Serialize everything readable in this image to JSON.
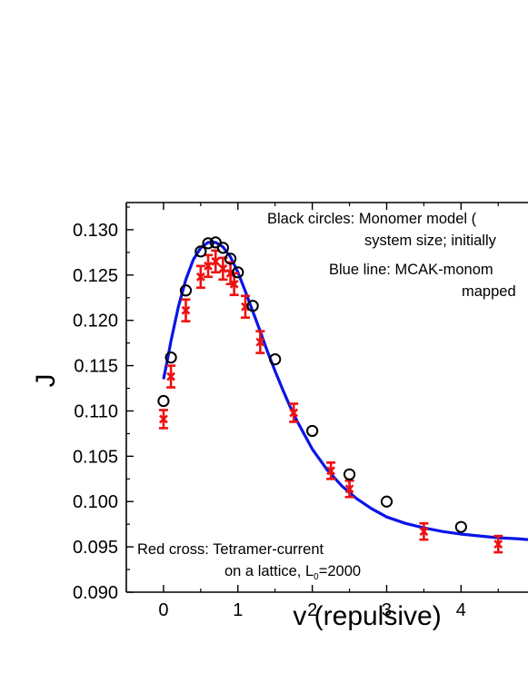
{
  "chart_data": {
    "type": "scatter",
    "xlabel": "v (repulsive)",
    "ylabel": "J",
    "xlim": [
      -0.5,
      4.9
    ],
    "ylim": [
      0.09,
      0.133
    ],
    "x_ticks": [
      "0",
      "1",
      "2",
      "3",
      "4"
    ],
    "y_ticks": [
      "0.090",
      "0.095",
      "0.100",
      "0.105",
      "0.110",
      "0.115",
      "0.120",
      "0.125",
      "0.130"
    ],
    "grid": false,
    "colors": {
      "circles": "#000000",
      "line": "#0a14e6",
      "crosses": "#ee1111"
    },
    "annotations": {
      "black_line1": "Black circles: Monomer model (",
      "black_line2": "system size; initially",
      "blue_line1": "Blue line: MCAK-monom",
      "blue_line2": "mapped",
      "red_line1": "Red cross: Tetramer-current",
      "red_line2_pre": "on a lattice, L",
      "red_line2_sub": "0",
      "red_line2_post": "=2000"
    },
    "series": [
      {
        "marker": "open-circle",
        "x": [
          0,
          0.1,
          0.3,
          0.5,
          0.6,
          0.7,
          0.8,
          0.9,
          1.0,
          1.2,
          1.5,
          2.0,
          2.5,
          3.0,
          4.0
        ],
        "y": [
          0.1111,
          0.1159,
          0.1233,
          0.1276,
          0.1285,
          0.1286,
          0.128,
          0.1268,
          0.1253,
          0.1216,
          0.1157,
          0.1078,
          0.103,
          0.1,
          0.0972
        ]
      },
      {
        "marker": "line",
        "x": [
          0.0,
          0.05,
          0.1,
          0.2,
          0.3,
          0.4,
          0.5,
          0.6,
          0.7,
          0.8,
          0.9,
          1.0,
          1.1,
          1.2,
          1.3,
          1.4,
          1.5,
          1.6,
          1.7,
          1.8,
          2.0,
          2.2,
          2.4,
          2.6,
          2.8,
          3.0,
          3.25,
          3.5,
          3.75,
          4.0,
          4.25,
          4.5,
          4.75,
          4.9
        ],
        "y": [
          0.1135,
          0.1155,
          0.1177,
          0.1215,
          0.1245,
          0.1267,
          0.128,
          0.1286,
          0.1286,
          0.1281,
          0.127,
          0.1253,
          0.1232,
          0.121,
          0.1188,
          0.1165,
          0.1144,
          0.1124,
          0.1105,
          0.1088,
          0.1058,
          0.1035,
          0.1017,
          0.1003,
          0.0992,
          0.0983,
          0.0976,
          0.0971,
          0.0967,
          0.0964,
          0.0962,
          0.096,
          0.0959,
          0.0958
        ]
      },
      {
        "marker": "cross-with-errorbar",
        "x": [
          0,
          0.1,
          0.3,
          0.5,
          0.6,
          0.7,
          0.8,
          0.9,
          0.95,
          1.1,
          1.3,
          1.75,
          2.25,
          2.5,
          3.5,
          4.5
        ],
        "y": [
          0.1091,
          0.1138,
          0.1211,
          0.1248,
          0.126,
          0.1265,
          0.1257,
          0.1252,
          0.124,
          0.1215,
          0.1176,
          0.1098,
          0.1034,
          0.1014,
          0.0967,
          0.0953
        ],
        "err": [
          0.001,
          0.0012,
          0.0012,
          0.0012,
          0.0012,
          0.0012,
          0.0012,
          0.0012,
          0.0012,
          0.0012,
          0.0012,
          0.001,
          0.0009,
          0.0009,
          0.0009,
          0.0009
        ]
      }
    ]
  }
}
